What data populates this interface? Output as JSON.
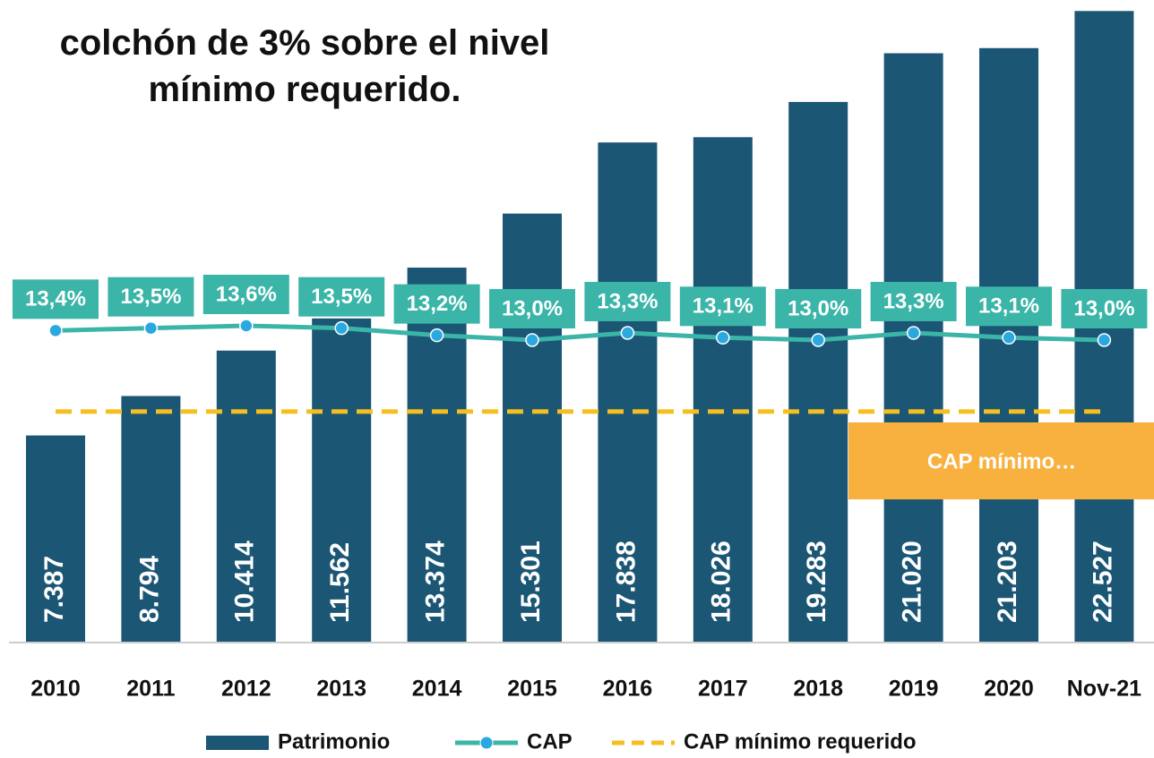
{
  "chart_data": {
    "type": "bar",
    "title": "colchón de 3% sobre el nivel mínimo requerido.",
    "categories": [
      "2010",
      "2011",
      "2012",
      "2013",
      "2014",
      "2015",
      "2016",
      "2017",
      "2018",
      "2019",
      "2020",
      "Nov-21"
    ],
    "ylim": [
      0,
      22600
    ],
    "y2lim": [
      0.3,
      26.9
    ],
    "annotation": "CAP mínimo…",
    "series": [
      {
        "name": "Patrimonio",
        "type": "bar",
        "color": "#1b5675",
        "values": [
          7387,
          8794,
          10414,
          11562,
          13374,
          15301,
          17838,
          18026,
          19283,
          21020,
          21203,
          22527
        ],
        "value_labels": [
          "7.387",
          "8.794",
          "10.414",
          "11.562",
          "13.374",
          "15.301",
          "17.838",
          "18.026",
          "19.283",
          "21.020",
          "21.203",
          "22.527"
        ]
      },
      {
        "name": "CAP",
        "type": "line",
        "axis": "y2",
        "color": "#3ab5a8",
        "values": [
          13.4,
          13.5,
          13.6,
          13.5,
          13.2,
          13.0,
          13.3,
          13.1,
          13.0,
          13.3,
          13.1,
          13.0
        ],
        "value_labels": [
          "13,4%",
          "13,5%",
          "13,6%",
          "13,5%",
          "13,2%",
          "13,0%",
          "13,3%",
          "13,1%",
          "13,0%",
          "13,3%",
          "13,1%",
          "13,0%"
        ]
      },
      {
        "name": "CAP mínimo requerido",
        "type": "dashed",
        "axis": "y2",
        "color": "#f5bf1f",
        "values": [
          10,
          10,
          10,
          10,
          10,
          10,
          10,
          10,
          10,
          10,
          10,
          10
        ]
      }
    ]
  }
}
